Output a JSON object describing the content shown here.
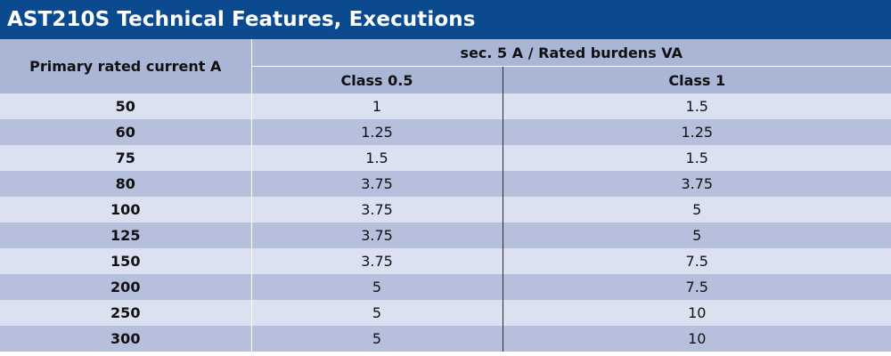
{
  "title": "AST210S Technical Features, Executions",
  "headers": {
    "primary": "Primary rated current A",
    "secondary": "sec. 5 A / Rated burdens VA",
    "class05": "Class 0.5",
    "class1": "Class 1"
  },
  "rows": [
    {
      "current": "50",
      "class05": "1",
      "class1": "1.5"
    },
    {
      "current": "60",
      "class05": "1.25",
      "class1": "1.25"
    },
    {
      "current": "75",
      "class05": "1.5",
      "class1": "1.5"
    },
    {
      "current": "80",
      "class05": "3.75",
      "class1": "3.75"
    },
    {
      "current": "100",
      "class05": "3.75",
      "class1": "5"
    },
    {
      "current": "125",
      "class05": "3.75",
      "class1": "5"
    },
    {
      "current": "150",
      "class05": "3.75",
      "class1": "7.5"
    },
    {
      "current": "200",
      "class05": "5",
      "class1": "7.5"
    },
    {
      "current": "250",
      "class05": "5",
      "class1": "10"
    },
    {
      "current": "300",
      "class05": "5",
      "class1": "10"
    }
  ]
}
